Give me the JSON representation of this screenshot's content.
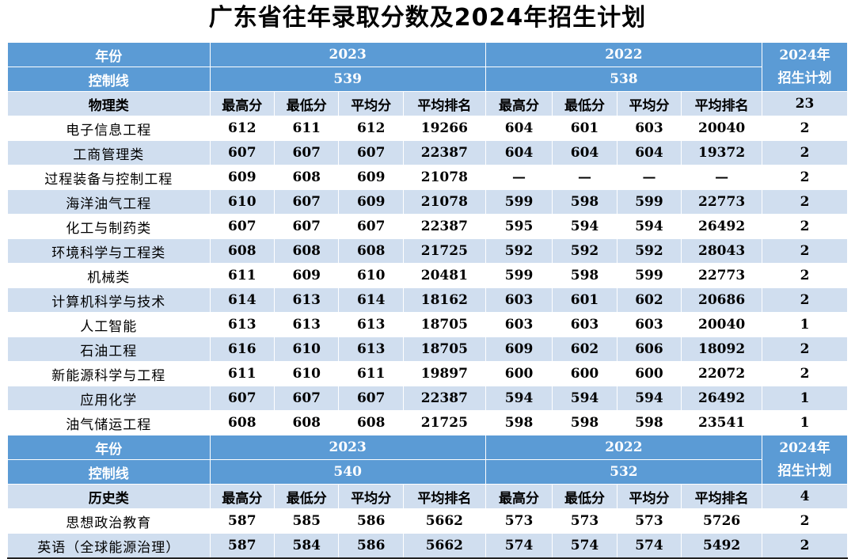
{
  "title": "广东省往年录取分数及2024年招生计划",
  "sections": [
    {
      "year_label": "年份",
      "control_label": "控制线",
      "year_a": "2023",
      "year_b": "2022",
      "plan_header_line1": "2024年",
      "plan_header_line2": "招生计划",
      "control_a": "539",
      "control_b": "538",
      "category": "物理类",
      "columns": [
        "最高分",
        "最低分",
        "平均分",
        "平均排名",
        "最高分",
        "最低分",
        "平均分",
        "平均排名"
      ],
      "total_plan": "23",
      "rows": [
        {
          "name": "电子信息工程",
          "v": [
            "612",
            "611",
            "612",
            "19266",
            "604",
            "601",
            "603",
            "20040"
          ],
          "plan": "2"
        },
        {
          "name": "工商管理类",
          "v": [
            "607",
            "607",
            "607",
            "22387",
            "604",
            "604",
            "604",
            "19372"
          ],
          "plan": "2"
        },
        {
          "name": "过程装备与控制工程",
          "v": [
            "609",
            "608",
            "609",
            "21078",
            "—",
            "—",
            "—",
            "—"
          ],
          "plan": "2"
        },
        {
          "name": "海洋油气工程",
          "v": [
            "610",
            "607",
            "609",
            "21078",
            "599",
            "598",
            "599",
            "22773"
          ],
          "plan": "2"
        },
        {
          "name": "化工与制药类",
          "v": [
            "607",
            "607",
            "607",
            "22387",
            "595",
            "594",
            "594",
            "26492"
          ],
          "plan": "2"
        },
        {
          "name": "环境科学与工程类",
          "v": [
            "608",
            "608",
            "608",
            "21725",
            "592",
            "592",
            "592",
            "28043"
          ],
          "plan": "2"
        },
        {
          "name": "机械类",
          "v": [
            "611",
            "609",
            "610",
            "20481",
            "599",
            "598",
            "599",
            "22773"
          ],
          "plan": "2"
        },
        {
          "name": "计算机科学与技术",
          "v": [
            "614",
            "613",
            "614",
            "18162",
            "603",
            "601",
            "602",
            "20686"
          ],
          "plan": "2"
        },
        {
          "name": "人工智能",
          "v": [
            "613",
            "613",
            "613",
            "18705",
            "603",
            "603",
            "603",
            "20040"
          ],
          "plan": "1"
        },
        {
          "name": "石油工程",
          "v": [
            "616",
            "610",
            "613",
            "18705",
            "609",
            "602",
            "606",
            "18092"
          ],
          "plan": "2"
        },
        {
          "name": "新能源科学与工程",
          "v": [
            "611",
            "610",
            "611",
            "19897",
            "600",
            "600",
            "600",
            "22072"
          ],
          "plan": "2"
        },
        {
          "name": "应用化学",
          "v": [
            "607",
            "607",
            "607",
            "22387",
            "594",
            "594",
            "594",
            "26492"
          ],
          "plan": "1"
        },
        {
          "name": "油气储运工程",
          "v": [
            "608",
            "608",
            "608",
            "21725",
            "598",
            "598",
            "598",
            "23541"
          ],
          "plan": "1"
        }
      ]
    },
    {
      "year_label": "年份",
      "control_label": "控制线",
      "year_a": "2023",
      "year_b": "2022",
      "plan_header_line1": "2024年",
      "plan_header_line2": "招生计划",
      "control_a": "540",
      "control_b": "532",
      "category": "历史类",
      "columns": [
        "最高分",
        "最低分",
        "平均分",
        "平均排名",
        "最高分",
        "最低分",
        "平均分",
        "平均排名"
      ],
      "total_plan": "4",
      "rows": [
        {
          "name": "思想政治教育",
          "v": [
            "587",
            "585",
            "586",
            "5662",
            "573",
            "573",
            "573",
            "5726"
          ],
          "plan": "2"
        },
        {
          "name": "英语（全球能源治理）",
          "v": [
            "587",
            "584",
            "586",
            "5662",
            "574",
            "574",
            "574",
            "5492"
          ],
          "plan": "2"
        }
      ]
    }
  ]
}
